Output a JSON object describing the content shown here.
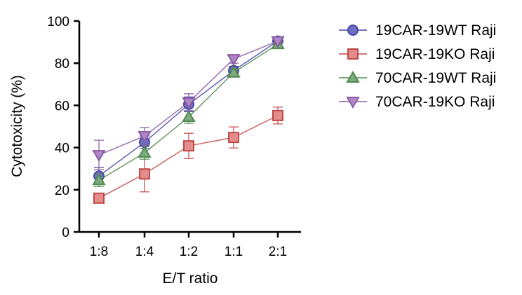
{
  "chart_data": {
    "type": "line",
    "title": "",
    "xlabel": "E/T ratio",
    "ylabel": "Cytotoxicity (%)",
    "categories": [
      "1:8",
      "1:4",
      "1:2",
      "1:1",
      "2:1"
    ],
    "ylim": [
      0,
      100
    ],
    "yticks": [
      0,
      20,
      40,
      60,
      80,
      100
    ],
    "legend_position": "right",
    "series": [
      {
        "name": "19CAR-19WT Raji",
        "marker": "circle",
        "color": "#6f6fc4",
        "edge": "#4545a8",
        "values": [
          26.5,
          42.5,
          60.5,
          76.5,
          90.5
        ],
        "errors": [
          4,
          3,
          3.5,
          2,
          1
        ]
      },
      {
        "name": "19CAR-19KO Raji",
        "marker": "square",
        "color": "#e28c8c",
        "edge": "#c24848",
        "values": [
          16,
          27.5,
          40.8,
          44.8,
          55.2
        ],
        "errors": [
          1.5,
          8.5,
          6,
          5,
          4
        ]
      },
      {
        "name": "70CAR-19WT Raji",
        "marker": "triangle-up",
        "color": "#7caa7c",
        "edge": "#4f8a4f",
        "values": [
          24.5,
          37.5,
          54.5,
          75.5,
          89
        ],
        "errors": [
          3,
          3,
          3,
          2,
          1
        ]
      },
      {
        "name": "70CAR-19KO Raji",
        "marker": "triangle-down",
        "color": "#b087c6",
        "edge": "#8a5aa4",
        "values": [
          36.5,
          45.5,
          61.5,
          82,
          90.5
        ],
        "errors": [
          7,
          4,
          4,
          2,
          1
        ]
      }
    ]
  }
}
